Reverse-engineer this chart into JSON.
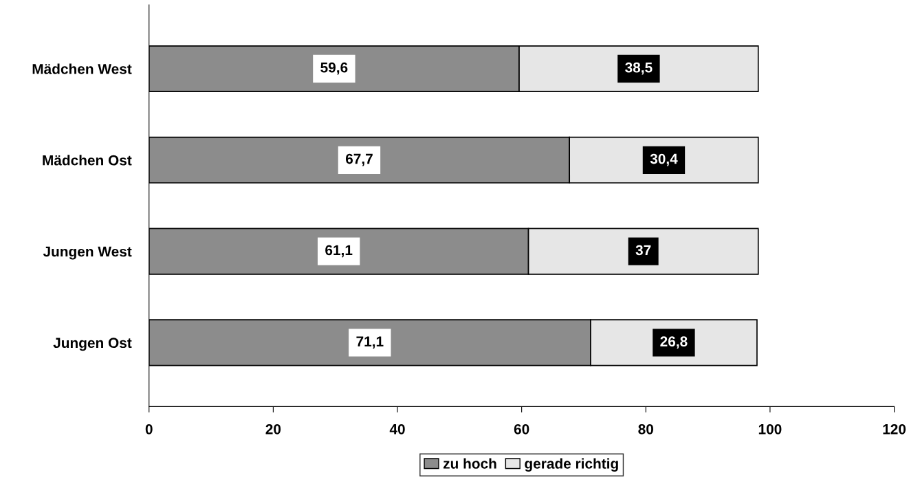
{
  "chart_data": {
    "type": "bar",
    "orientation": "horizontal",
    "stacked": true,
    "categories": [
      "Mädchen West",
      "Mädchen Ost",
      "Jungen West",
      "Jungen Ost"
    ],
    "series": [
      {
        "name": "zu hoch",
        "color": "#8c8c8c",
        "values": [
          59.6,
          67.7,
          61.1,
          71.1
        ],
        "value_labels": [
          "59,6",
          "67,7",
          "61,1",
          "71,1"
        ]
      },
      {
        "name": "gerade richtig",
        "color": "#e6e6e6",
        "values": [
          38.5,
          30.4,
          37,
          26.8
        ],
        "value_labels": [
          "38,5",
          "30,4",
          "37",
          "26,8"
        ]
      }
    ],
    "xlim": [
      0,
      120
    ],
    "xticks": [
      0,
      20,
      40,
      60,
      80,
      100,
      120
    ],
    "grid": false,
    "legend": "bottom"
  }
}
